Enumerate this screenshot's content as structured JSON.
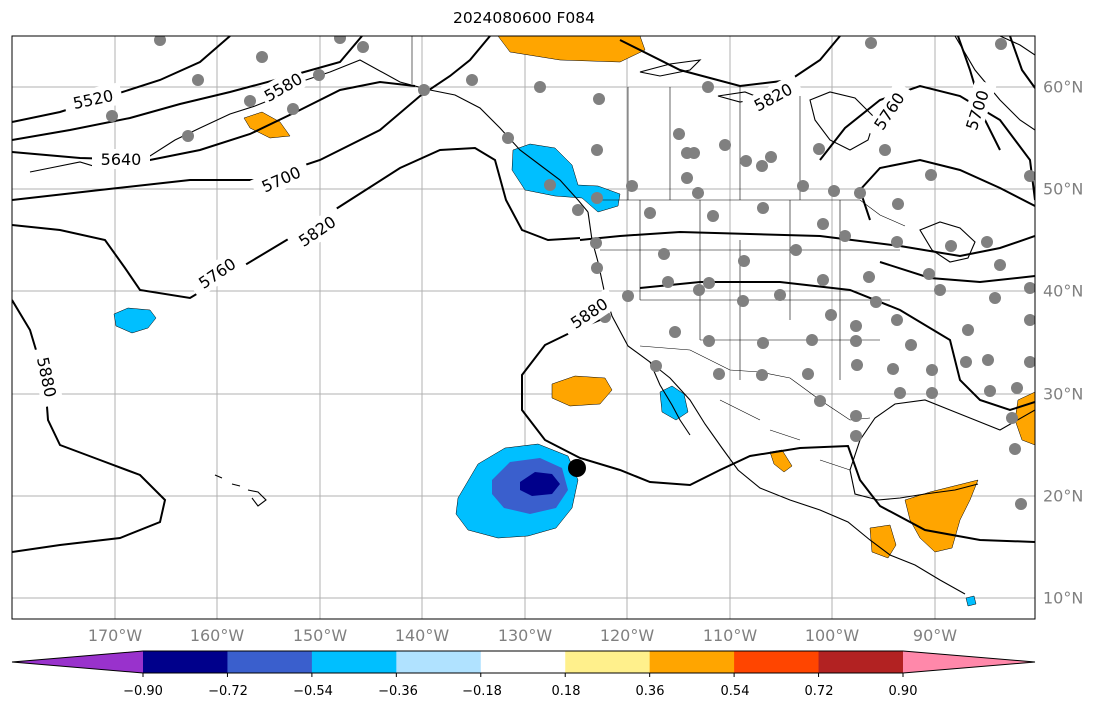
{
  "title": "2024080600 F084",
  "contour_labels": [
    "5520",
    "5580",
    "5640",
    "5700",
    "5760",
    "5820",
    "5880",
    "5880",
    "5760",
    "5820",
    "5760",
    "5700"
  ],
  "lon_labels": [
    "170°W",
    "160°W",
    "150°W",
    "140°W",
    "130°W",
    "120°W",
    "110°W",
    "100°W",
    "90°W"
  ],
  "lat_labels": [
    "60°N",
    "50°N",
    "40°N",
    "30°N",
    "20°N",
    "10°N"
  ],
  "colorbar": {
    "ticks": [
      "−0.90",
      "−0.72",
      "−0.54",
      "−0.36",
      "−0.18",
      "0.18",
      "0.36",
      "0.54",
      "0.72",
      "0.90"
    ],
    "colors": [
      "#9932cc",
      "#00008b",
      "#3a5fcd",
      "#00bfff",
      "#b0e2ff",
      "#ffffff",
      "#fff08c",
      "#ffa500",
      "#ff4500",
      "#b22222",
      "#ff88aa"
    ]
  },
  "colors": {
    "grid": "#b0b0b0",
    "contour": "#000000",
    "station_dot": "#808080",
    "storm_marker": "#000000"
  }
}
